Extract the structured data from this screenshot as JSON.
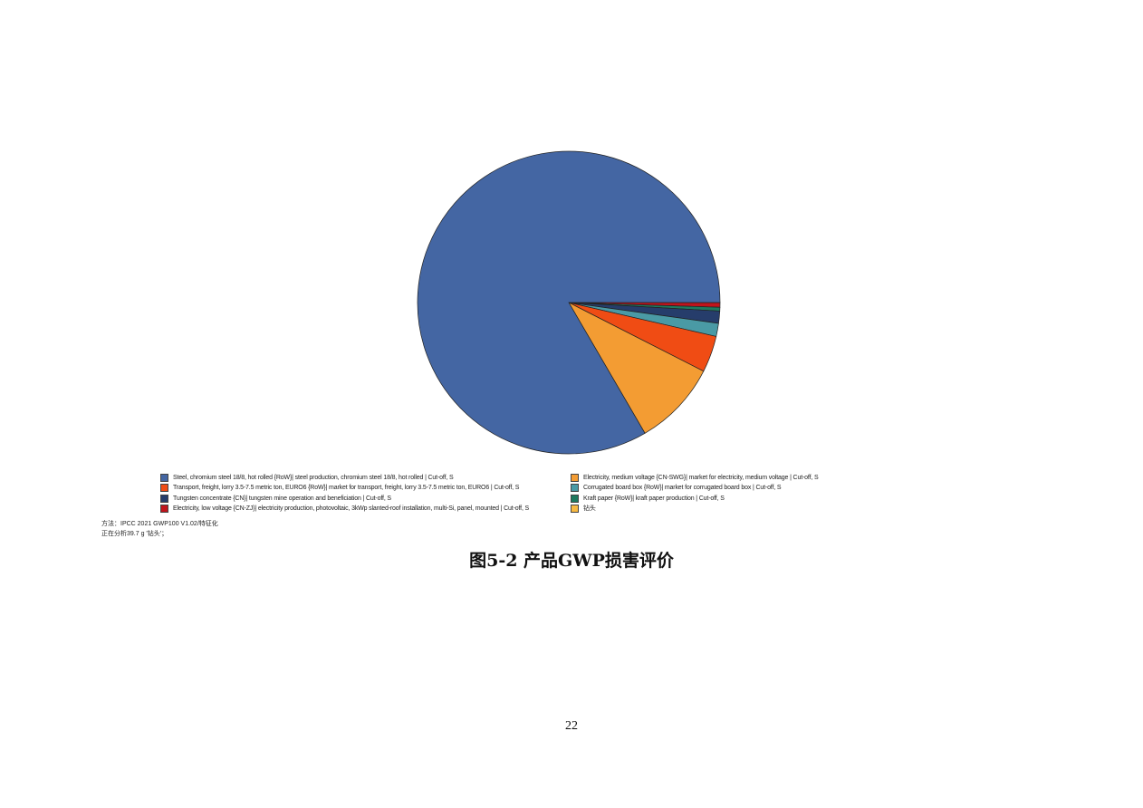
{
  "chart_data": {
    "type": "pie",
    "unit": "percent (approx.)",
    "slices": [
      {
        "name": "Steel, chromium steel 18/8, hot rolled {RoW}| steel production, chromium steel 18/8, hot rolled | Cut-off, S",
        "value": 83.4,
        "color": "#4466a3"
      },
      {
        "name": "Electricity, medium voltage {CN-SWG}| market for electricity, medium voltage | Cut-off, S",
        "value": 9.1,
        "color": "#f39c33"
      },
      {
        "name": "Transport, freight, lorry 3.5-7.5 metric ton, EURO6 {RoW}| market for transport, freight, lorry 3.5-7.5 metric ton, EURO6 | Cut-off, S",
        "value": 3.9,
        "color": "#f04c14"
      },
      {
        "name": "Corrugated board box {RoW}| market for corrugated board box | Cut-off, S",
        "value": 1.4,
        "color": "#4a9aa5"
      },
      {
        "name": "Tungsten concentrate {CN}| tungsten mine operation and beneficiation | Cut-off, S",
        "value": 1.3,
        "color": "#263d6b"
      },
      {
        "name": "Kraft paper {RoW}| kraft paper production | Cut-off, S",
        "value": 0.4,
        "color": "#1e7a5f"
      },
      {
        "name": "Electricity, low voltage {CN-ZJ}| electricity production, photovoltaic, 3kWp slanted-roof installation, multi-Si, panel, mounted | Cut-off, S",
        "value": 0.5,
        "color": "#c0141c"
      },
      {
        "name": "钻头",
        "value": 0,
        "color": "#f7b942"
      }
    ],
    "legend_position": "bottom"
  },
  "notes": {
    "method": "方法：IPCC 2021 GWP100 V1.02/特征化",
    "analyzing": "正在分析39.7 g '钻头'；"
  },
  "caption": "图5-2  产品GWP损害评价",
  "page_number": "22"
}
